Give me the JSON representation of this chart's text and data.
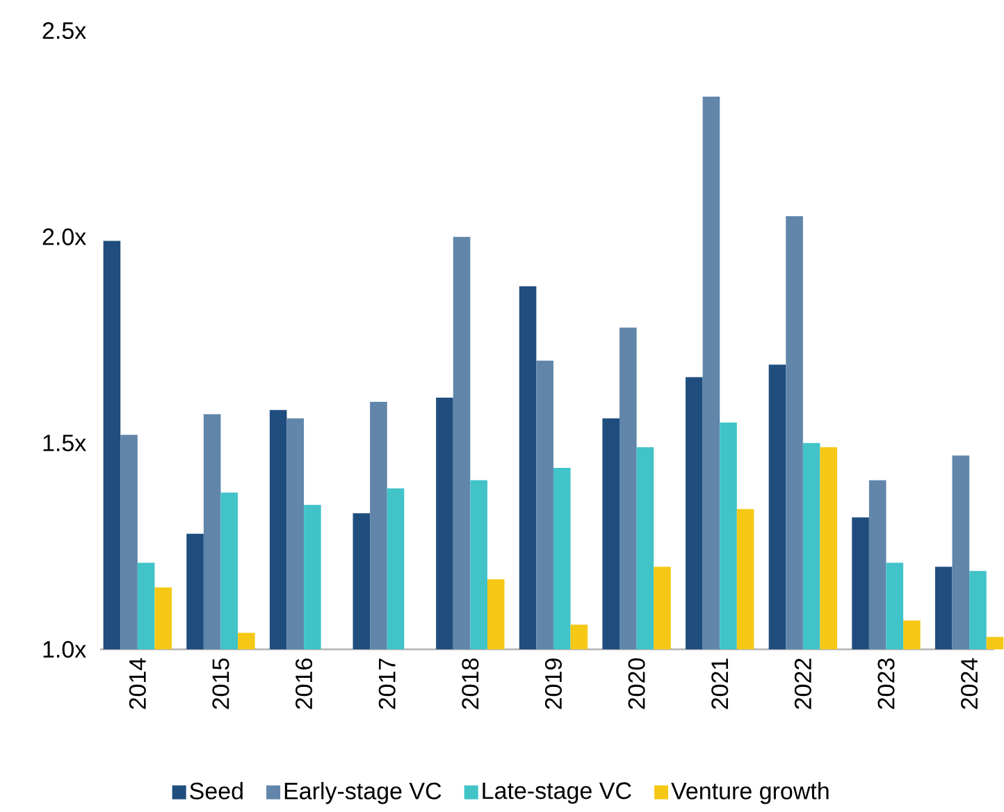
{
  "chart_data": {
    "type": "bar",
    "categories": [
      "2014",
      "2015",
      "2016",
      "2017",
      "2018",
      "2019",
      "2020",
      "2021",
      "2022",
      "2023",
      "2024"
    ],
    "series": [
      {
        "name": "Seed",
        "color": "#1f4e7e",
        "values": [
          1.99,
          1.28,
          1.58,
          1.33,
          1.61,
          1.88,
          1.56,
          1.66,
          1.69,
          1.32,
          1.2
        ]
      },
      {
        "name": "Early-stage VC",
        "color": "#6186aa",
        "values": [
          1.52,
          1.57,
          1.56,
          1.6,
          2.0,
          1.7,
          1.78,
          2.34,
          2.05,
          1.41,
          1.47
        ]
      },
      {
        "name": "Late-stage VC",
        "color": "#41c3c8",
        "values": [
          1.21,
          1.38,
          1.35,
          1.39,
          1.41,
          1.44,
          1.49,
          1.55,
          1.5,
          1.21,
          1.19
        ]
      },
      {
        "name": "Venture growth",
        "color": "#f5c816",
        "values": [
          1.15,
          1.04,
          null,
          null,
          1.17,
          1.06,
          1.2,
          1.34,
          1.49,
          1.07,
          1.03
        ]
      }
    ],
    "ylim": [
      1.0,
      2.5
    ],
    "yticks": [
      {
        "value": 1.0,
        "label": "1.0x"
      },
      {
        "value": 1.5,
        "label": "1.5x"
      },
      {
        "value": 2.0,
        "label": "2.0x"
      },
      {
        "value": 2.5,
        "label": "2.5x"
      }
    ],
    "legend": "bottom"
  }
}
